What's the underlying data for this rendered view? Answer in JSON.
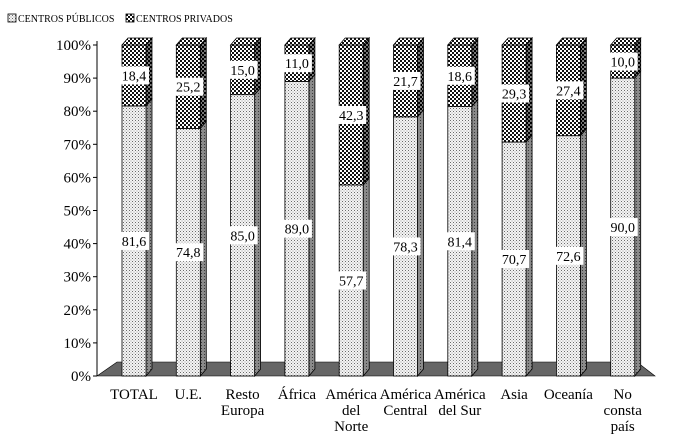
{
  "chart_data": {
    "type": "bar",
    "stacked": true,
    "percent": true,
    "three_d": true,
    "categories": [
      [
        "TOTAL"
      ],
      [
        "U.E."
      ],
      [
        "Resto",
        "Europa"
      ],
      [
        "África"
      ],
      [
        "América",
        "del",
        "Norte"
      ],
      [
        "América",
        "Central"
      ],
      [
        "América",
        "del Sur"
      ],
      [
        "Asia"
      ],
      [
        "Oceanía"
      ],
      [
        "No",
        "consta",
        "país"
      ]
    ],
    "series": [
      {
        "name": "CENTROS PÚBLICOS",
        "values": [
          81.6,
          74.8,
          85.0,
          89.0,
          57.7,
          78.3,
          81.4,
          70.7,
          72.6,
          90.0
        ],
        "labels": [
          "81,6",
          "74,8",
          "85,0",
          "89,0",
          "57,7",
          "78,3",
          "81,4",
          "70,7",
          "72,6",
          "90,0"
        ],
        "pattern": "fine-dots"
      },
      {
        "name": "CENTROS PRIVADOS",
        "values": [
          18.4,
          25.2,
          15.0,
          11.0,
          42.3,
          21.7,
          18.6,
          29.3,
          27.4,
          10.0
        ],
        "labels": [
          "18,4",
          "25,2",
          "15,0",
          "11,0",
          "42,3",
          "21,7",
          "18,6",
          "29,3",
          "27,4",
          "10,0"
        ],
        "pattern": "checker"
      }
    ],
    "y_ticks": [
      "0%",
      "10%",
      "20%",
      "30%",
      "40%",
      "50%",
      "60%",
      "70%",
      "80%",
      "90%",
      "100%"
    ],
    "ylim": [
      0,
      100
    ],
    "grid": false,
    "legend_position": "top-left",
    "colors": {
      "floor": "#666666",
      "side_dark": "#555555",
      "outline": "#000000"
    }
  }
}
